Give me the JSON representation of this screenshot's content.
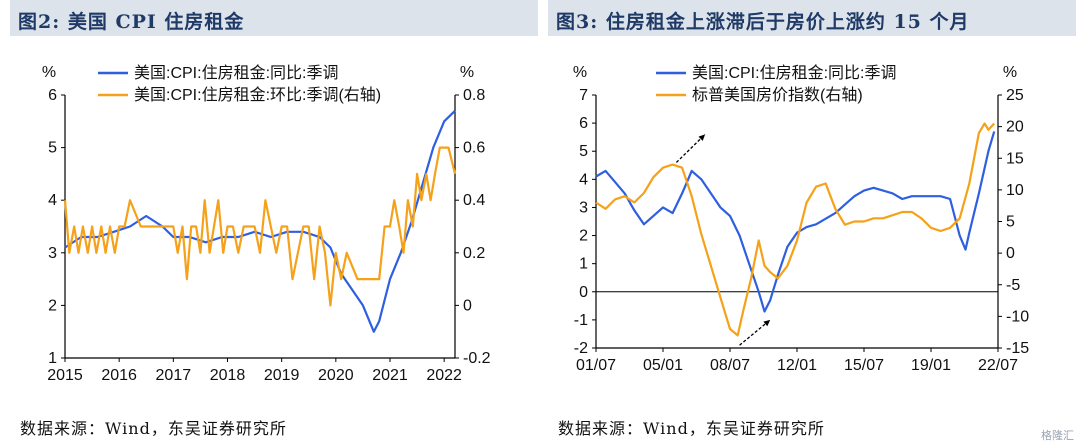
{
  "panels": {
    "left": {
      "title": "图2:  美国 CPI 住房租金",
      "source": "数据来源：Wind，东吴证券研究所"
    },
    "right": {
      "title": "图3:  住房租金上涨滞后于房价上涨约 15 个月",
      "source": "数据来源：Wind，东吴证券研究所"
    }
  },
  "watermark": "格隆汇",
  "colors": {
    "series_blue": "#2e5fe0",
    "series_orange": "#f5a11a",
    "axis": "#000000"
  },
  "chart_data": [
    {
      "type": "line",
      "title": "图2:  美国 CPI 住房租金",
      "y_left_unit": "%",
      "y_right_unit": "%",
      "ylim": [
        1,
        6
      ],
      "ylim_right": [
        -0.2,
        0.8
      ],
      "yticks": [
        "1",
        "2",
        "3",
        "4",
        "5",
        "6"
      ],
      "yticks_right": [
        "-0.2",
        "0",
        "0.2",
        "0.4",
        "0.6",
        "0.8"
      ],
      "xticks": [
        "2015",
        "2016",
        "2017",
        "2018",
        "2019",
        "2020",
        "2021",
        "2022"
      ],
      "xlim": [
        2015,
        2022.2
      ],
      "legend_position": "top",
      "series": [
        {
          "name": "美国:CPI:住房租金:同比:季调",
          "axis": "left",
          "color": "#2e5fe0",
          "x": [
            2015.0,
            2015.3,
            2015.6,
            2015.9,
            2016.2,
            2016.5,
            2016.8,
            2017.0,
            2017.3,
            2017.6,
            2017.9,
            2018.2,
            2018.5,
            2018.8,
            2019.1,
            2019.4,
            2019.7,
            2019.9,
            2020.1,
            2020.3,
            2020.5,
            2020.7,
            2020.8,
            2020.9,
            2021.0,
            2021.2,
            2021.4,
            2021.6,
            2021.8,
            2022.0,
            2022.2
          ],
          "y": [
            3.1,
            3.3,
            3.3,
            3.4,
            3.5,
            3.7,
            3.5,
            3.3,
            3.3,
            3.2,
            3.3,
            3.3,
            3.4,
            3.3,
            3.4,
            3.4,
            3.3,
            3.1,
            2.6,
            2.3,
            2.0,
            1.5,
            1.7,
            2.1,
            2.5,
            3.0,
            3.6,
            4.3,
            5.0,
            5.5,
            5.7
          ]
        },
        {
          "name": "美国:CPI:住房租金:环比:季调(右轴)",
          "axis": "right",
          "color": "#f5a11a",
          "x": [
            2015.0,
            2015.08,
            2015.17,
            2015.25,
            2015.33,
            2015.42,
            2015.5,
            2015.58,
            2015.67,
            2015.75,
            2015.83,
            2015.92,
            2016.0,
            2016.1,
            2016.2,
            2016.4,
            2016.6,
            2016.8,
            2017.0,
            2017.08,
            2017.17,
            2017.25,
            2017.33,
            2017.42,
            2017.5,
            2017.58,
            2017.67,
            2017.75,
            2017.83,
            2017.92,
            2018.0,
            2018.1,
            2018.2,
            2018.3,
            2018.4,
            2018.5,
            2018.6,
            2018.7,
            2018.8,
            2018.9,
            2019.0,
            2019.1,
            2019.2,
            2019.3,
            2019.4,
            2019.5,
            2019.6,
            2019.7,
            2019.8,
            2019.9,
            2020.0,
            2020.1,
            2020.2,
            2020.4,
            2020.6,
            2020.8,
            2020.9,
            2021.0,
            2021.08,
            2021.17,
            2021.25,
            2021.33,
            2021.42,
            2021.5,
            2021.58,
            2021.67,
            2021.75,
            2021.83,
            2021.92,
            2022.0,
            2022.08,
            2022.2
          ],
          "y": [
            0.4,
            0.2,
            0.3,
            0.2,
            0.3,
            0.2,
            0.3,
            0.2,
            0.3,
            0.2,
            0.3,
            0.2,
            0.3,
            0.3,
            0.4,
            0.3,
            0.3,
            0.3,
            0.3,
            0.2,
            0.3,
            0.1,
            0.3,
            0.3,
            0.2,
            0.4,
            0.2,
            0.3,
            0.4,
            0.2,
            0.3,
            0.3,
            0.2,
            0.3,
            0.3,
            0.3,
            0.2,
            0.4,
            0.3,
            0.2,
            0.3,
            0.3,
            0.1,
            0.2,
            0.3,
            0.3,
            0.1,
            0.3,
            0.2,
            0.0,
            0.2,
            0.1,
            0.2,
            0.1,
            0.1,
            0.1,
            0.3,
            0.3,
            0.4,
            0.3,
            0.2,
            0.4,
            0.3,
            0.5,
            0.4,
            0.5,
            0.4,
            0.5,
            0.6,
            0.6,
            0.6,
            0.5
          ]
        }
      ]
    },
    {
      "type": "line",
      "title": "图3:  住房租金上涨滞后于房价上涨约 15 个月",
      "y_left_unit": "%",
      "y_right_unit": "%",
      "ylim": [
        -2,
        7
      ],
      "ylim_right": [
        -15,
        25
      ],
      "yticks": [
        "-2",
        "-1",
        "0",
        "1",
        "2",
        "3",
        "4",
        "5",
        "6",
        "7"
      ],
      "yticks_right": [
        "-15",
        "-10",
        "-5",
        "0",
        "5",
        "10",
        "15",
        "20",
        "25"
      ],
      "xticks": [
        "01/07",
        "05/01",
        "08/07",
        "12/01",
        "15/07",
        "19/01",
        "22/07"
      ],
      "xlim": [
        2001.5,
        2022.5
      ],
      "legend_position": "top",
      "annotations": [
        "arrow-up-right near 2006",
        "arrow-up-right near 2010"
      ],
      "series": [
        {
          "name": "美国:CPI:住房租金:同比:季调",
          "axis": "left",
          "color": "#2e5fe0",
          "x": [
            2001.5,
            2002.0,
            2002.5,
            2003.0,
            2003.5,
            2004.0,
            2004.5,
            2005.0,
            2005.5,
            2006.0,
            2006.5,
            2007.0,
            2007.5,
            2008.0,
            2008.5,
            2009.0,
            2009.5,
            2010.0,
            2010.3,
            2010.6,
            2011.0,
            2011.5,
            2012.0,
            2012.5,
            2013.0,
            2013.5,
            2014.0,
            2014.5,
            2015.0,
            2015.5,
            2016.0,
            2016.5,
            2017.0,
            2017.5,
            2018.0,
            2018.5,
            2019.0,
            2019.5,
            2020.0,
            2020.5,
            2020.8,
            2021.0,
            2021.5,
            2022.0,
            2022.3
          ],
          "y": [
            4.1,
            4.3,
            3.9,
            3.5,
            2.9,
            2.4,
            2.7,
            3.0,
            2.8,
            3.5,
            4.3,
            4.0,
            3.5,
            3.0,
            2.7,
            2.0,
            1.0,
            0.0,
            -0.7,
            -0.3,
            0.6,
            1.6,
            2.1,
            2.3,
            2.4,
            2.6,
            2.8,
            3.1,
            3.4,
            3.6,
            3.7,
            3.6,
            3.5,
            3.3,
            3.4,
            3.4,
            3.4,
            3.4,
            3.3,
            2.0,
            1.5,
            2.1,
            3.5,
            5.0,
            5.7
          ]
        },
        {
          "name": "标普美国房价指数(右轴)",
          "axis": "right",
          "color": "#f5a11a",
          "x": [
            2001.5,
            2002.0,
            2002.5,
            2003.0,
            2003.5,
            2004.0,
            2004.5,
            2005.0,
            2005.5,
            2006.0,
            2006.5,
            2007.0,
            2007.5,
            2008.0,
            2008.5,
            2008.9,
            2009.2,
            2009.6,
            2010.0,
            2010.3,
            2010.6,
            2011.0,
            2011.5,
            2012.0,
            2012.5,
            2013.0,
            2013.5,
            2014.0,
            2014.5,
            2015.0,
            2015.5,
            2016.0,
            2016.5,
            2017.0,
            2017.5,
            2018.0,
            2018.5,
            2019.0,
            2019.5,
            2020.0,
            2020.5,
            2021.0,
            2021.5,
            2021.8,
            2022.0,
            2022.3
          ],
          "y": [
            8.0,
            7.0,
            8.5,
            9.0,
            8.0,
            9.5,
            12.0,
            13.5,
            14.0,
            13.5,
            9.0,
            3.0,
            -2.0,
            -7.0,
            -12.0,
            -13.0,
            -9.0,
            -4.0,
            2.0,
            -2.0,
            -3.0,
            -4.0,
            -2.0,
            2.0,
            8.0,
            10.5,
            11.0,
            7.0,
            4.5,
            5.0,
            5.0,
            5.5,
            5.5,
            6.0,
            6.5,
            6.5,
            5.5,
            4.0,
            3.5,
            4.0,
            5.5,
            11.0,
            19.0,
            20.5,
            19.5,
            20.5
          ]
        }
      ]
    }
  ]
}
